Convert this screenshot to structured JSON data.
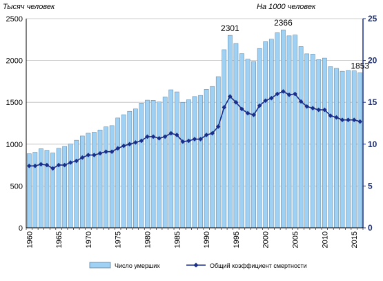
{
  "chart_data": {
    "type": "bar+line",
    "left_axis_unit": "Тысяч человек",
    "right_axis_unit": "На 1000 человек",
    "x": [
      1960,
      1961,
      1962,
      1963,
      1964,
      1965,
      1966,
      1967,
      1968,
      1969,
      1970,
      1971,
      1972,
      1973,
      1974,
      1975,
      1976,
      1977,
      1978,
      1979,
      1980,
      1981,
      1982,
      1983,
      1984,
      1985,
      1986,
      1987,
      1988,
      1989,
      1990,
      1991,
      1992,
      1993,
      1994,
      1995,
      1996,
      1997,
      1998,
      1999,
      2000,
      2001,
      2002,
      2003,
      2004,
      2005,
      2006,
      2007,
      2008,
      2009,
      2010,
      2011,
      2012,
      2013,
      2014,
      2015,
      2016
    ],
    "x_tick_labels": [
      "1960",
      "1965",
      "1970",
      "1975",
      "1980",
      "1985",
      "1990",
      "1995",
      "2000",
      "2005",
      "2010",
      "2015"
    ],
    "y_left_ticks": [
      "0",
      "500",
      "1000",
      "1500",
      "2000",
      "2500"
    ],
    "y_right_ticks": [
      "0",
      "5",
      "10",
      "15",
      "20",
      "25"
    ],
    "ylim_left": [
      0,
      2500
    ],
    "ylim_right": [
      0,
      25
    ],
    "grid": "horizontal",
    "series": [
      {
        "name": "Число умерших",
        "axis": "left",
        "type": "bar",
        "values": [
          886,
          903,
          946,
          927,
          895,
          951,
          973,
          1002,
          1047,
          1098,
          1131,
          1143,
          1170,
          1207,
          1222,
          1313,
          1352,
          1393,
          1421,
          1491,
          1526,
          1524,
          1505,
          1564,
          1650,
          1625,
          1498,
          1531,
          1569,
          1583,
          1656,
          1690,
          1807,
          2129,
          2301,
          2204,
          2082,
          2016,
          1988,
          2144,
          2225,
          2255,
          2332,
          2366,
          2295,
          2304,
          2167,
          2080,
          2076,
          2011,
          2029,
          1926,
          1906,
          1872,
          1880,
          1877,
          1853
        ],
        "color": "#9fd1f4"
      },
      {
        "name": "Общий коэффициент смертности",
        "axis": "right",
        "type": "line",
        "values": [
          7.4,
          7.4,
          7.6,
          7.5,
          7.1,
          7.5,
          7.5,
          7.8,
          8.0,
          8.4,
          8.7,
          8.7,
          8.9,
          9.1,
          9.1,
          9.5,
          9.8,
          10.0,
          10.2,
          10.4,
          10.9,
          10.9,
          10.7,
          10.9,
          11.3,
          11.1,
          10.3,
          10.4,
          10.6,
          10.6,
          11.1,
          11.3,
          12.1,
          14.4,
          15.7,
          15.0,
          14.2,
          13.7,
          13.5,
          14.6,
          15.2,
          15.5,
          16.0,
          16.3,
          15.9,
          16.0,
          15.1,
          14.5,
          14.3,
          14.1,
          14.1,
          13.4,
          13.2,
          12.9,
          12.9,
          12.9,
          12.7
        ],
        "color": "#1a2f8a"
      }
    ],
    "annotations": [
      {
        "x": 1994,
        "label": "2301"
      },
      {
        "x": 2003,
        "label": "2366"
      },
      {
        "x": 2016,
        "label": "1853"
      }
    ],
    "legend_position": "bottom"
  }
}
